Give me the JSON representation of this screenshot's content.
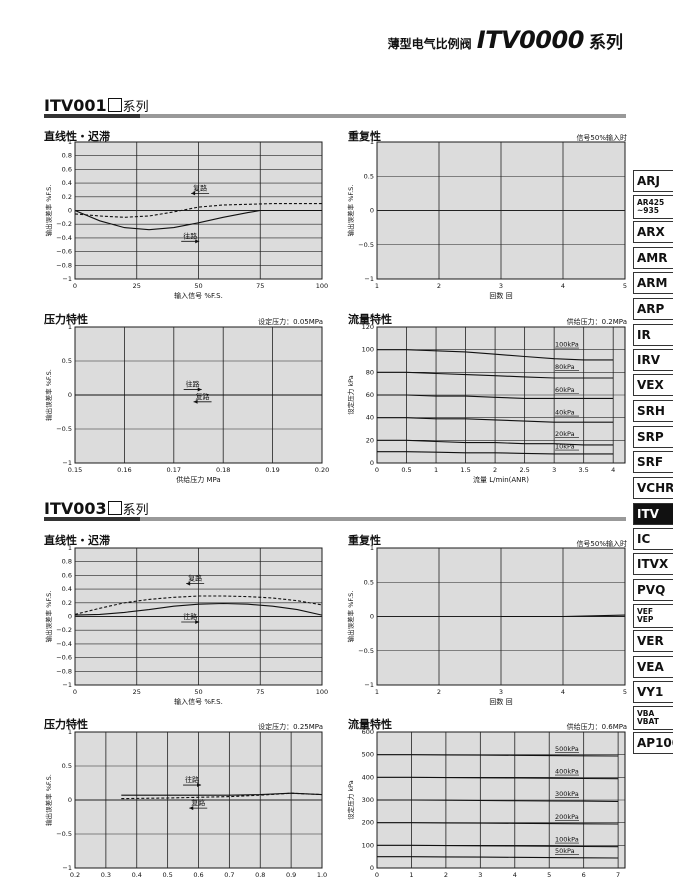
{
  "header": {
    "cn": "薄型电气比例阀",
    "model": "ITV0000",
    "series": "系列"
  },
  "sections": [
    {
      "title": "ITV001",
      "suffix": "系列"
    },
    {
      "title": "ITV003",
      "suffix": "系列"
    }
  ],
  "tabs": [
    "ARJ",
    "AR425\n~935",
    "ARX",
    "AMR",
    "ARM",
    "ARP",
    "IR",
    "IRV",
    "VEX",
    "SRH",
    "SRP",
    "SRF",
    "VCHR",
    "ITV",
    "IC",
    "ITVX",
    "PVQ",
    "VEF\nVEP",
    "VER",
    "VEA",
    "VY1",
    "VBA\nVBAT",
    "AP100"
  ],
  "active_tab": "ITV",
  "charts": [
    {
      "chart_data": {
        "type": "line",
        "title": "直线性・迟滞",
        "condition": "",
        "ylabel": "输出误差率 %F.S.",
        "xlabel": "输入信号 %F.S.",
        "xticks": [
          "0",
          "25",
          "50",
          "75",
          "100"
        ],
        "xlim": [
          0,
          100
        ],
        "yticks": [
          "−1",
          "−0.8",
          "−0.6",
          "−0.4",
          "−0.2",
          "0",
          "0.2",
          "0.4",
          "0.6",
          "0.8",
          "1"
        ],
        "ylim": [
          -1,
          1
        ],
        "series": [
          {
            "name": "复路",
            "style": "dashed",
            "x": [
              0,
              10,
              20,
              30,
              40,
              50,
              60,
              70,
              80,
              90,
              100
            ],
            "y": [
              -0.05,
              -0.08,
              -0.1,
              -0.08,
              -0.02,
              0.05,
              0.08,
              0.09,
              0.1,
              0.1,
              0.1
            ]
          },
          {
            "name": "往路",
            "style": "solid",
            "x": [
              0,
              10,
              20,
              30,
              40,
              50,
              60,
              70,
              75,
              80,
              90,
              100
            ],
            "y": [
              0,
              -0.15,
              -0.25,
              -0.28,
              -0.25,
              -0.18,
              -0.1,
              -0.03,
              0,
              0,
              0,
              0
            ]
          }
        ],
        "annotations": [
          {
            "text": "复路",
            "x": 47,
            "y": 0.25,
            "arrow": "left"
          },
          {
            "text": "往路",
            "x": 43,
            "y": -0.45,
            "arrow": "right"
          }
        ]
      }
    },
    {
      "chart_data": {
        "type": "line",
        "title": "重复性",
        "condition": "信号50%输入时",
        "ylabel": "输出误差率 %F.S.",
        "xlabel": "回数 回",
        "xticks": [
          "1",
          "2",
          "3",
          "4",
          "5"
        ],
        "xlim": [
          1,
          5
        ],
        "yticks": [
          "−1",
          "−0.5",
          "0",
          "0.5",
          "1"
        ],
        "ylim": [
          -1,
          1
        ],
        "series": [],
        "annotations": []
      }
    },
    {
      "chart_data": {
        "type": "line",
        "title": "压力特性",
        "condition": "设定压力：0.05MPa",
        "ylabel": "输出误差率 %F.S.",
        "xlabel": "供给压力 MPa",
        "xticks": [
          "0.15",
          "0.16",
          "0.17",
          "0.18",
          "0.19",
          "0.20"
        ],
        "xlim": [
          0.15,
          0.2
        ],
        "yticks": [
          "−1",
          "−0.5",
          "0",
          "0.5",
          "1"
        ],
        "ylim": [
          -1,
          1
        ],
        "series": [
          {
            "name": "往路",
            "style": "solid",
            "x": [
              0.15,
              0.2
            ],
            "y": [
              0,
              0
            ]
          },
          {
            "name": "复路",
            "style": "dashed",
            "x": [
              0.15,
              0.2
            ],
            "y": [
              0,
              0
            ]
          }
        ],
        "annotations": [
          {
            "text": "往路",
            "x": 0.172,
            "y": 0.08,
            "arrow": "right"
          },
          {
            "text": "复路",
            "x": 0.174,
            "y": -0.1,
            "arrow": "left"
          }
        ]
      }
    },
    {
      "chart_data": {
        "type": "line",
        "title": "流量特性",
        "condition": "供给压力：0.2MPa",
        "ylabel": "设定压力 kPa",
        "xlabel": "流量 L/min(ANR)",
        "xticks": [
          "0",
          "0.5",
          "1",
          "1.5",
          "2",
          "2.5",
          "3",
          "3.5",
          "4"
        ],
        "xlim": [
          0,
          4.2
        ],
        "yticks": [
          "0",
          "20",
          "40",
          "60",
          "80",
          "100",
          "120"
        ],
        "ylim": [
          0,
          120
        ],
        "series": [
          {
            "name": "100kPa",
            "style": "solid",
            "x": [
              0,
              0.5,
              1,
              1.5,
              2,
              2.5,
              3,
              3.5,
              4
            ],
            "y": [
              100,
              100,
              99,
              98,
              96,
              94,
              92,
              91,
              91
            ]
          },
          {
            "name": "80kPa",
            "style": "solid",
            "x": [
              0,
              0.5,
              1,
              1.5,
              2,
              2.5,
              3,
              3.5,
              4
            ],
            "y": [
              80,
              80,
              79,
              78,
              77,
              76,
              75,
              75,
              75
            ]
          },
          {
            "name": "60kPa",
            "style": "solid",
            "x": [
              0,
              0.5,
              1,
              1.5,
              2,
              2.5,
              3,
              3.5,
              4
            ],
            "y": [
              60,
              60,
              59,
              59,
              58,
              57,
              57,
              57,
              57
            ]
          },
          {
            "name": "40kPa",
            "style": "solid",
            "x": [
              0,
              0.5,
              1,
              1.5,
              2,
              2.5,
              3,
              3.5,
              4
            ],
            "y": [
              40,
              40,
              39,
              39,
              38,
              37,
              36,
              36,
              36
            ]
          },
          {
            "name": "20kPa",
            "style": "solid",
            "x": [
              0,
              0.5,
              1,
              1.5,
              2,
              2.5,
              3,
              3.5,
              4
            ],
            "y": [
              20,
              20,
              19,
              18,
              18,
              17,
              17,
              16,
              16
            ]
          },
          {
            "name": "10kPa",
            "style": "solid",
            "x": [
              0,
              0.5,
              1,
              1.5,
              2,
              2.5,
              3,
              3.5,
              4
            ],
            "y": [
              10,
              10,
              9.5,
              9,
              9,
              8.5,
              8,
              8,
              8
            ]
          }
        ],
        "line_labels": [
          {
            "text": "100kPa",
            "y": 101
          },
          {
            "text": "80kPa",
            "y": 81
          },
          {
            "text": "60kPa",
            "y": 61
          },
          {
            "text": "40kPa",
            "y": 41
          },
          {
            "text": "20kPa",
            "y": 22
          },
          {
            "text": "10kPa",
            "y": 11
          }
        ],
        "annotations": []
      }
    },
    {
      "chart_data": {
        "type": "line",
        "title": "直线性・迟滞",
        "condition": "",
        "ylabel": "输出误差率 %F.S.",
        "xlabel": "输入信号 %F.S.",
        "xticks": [
          "0",
          "25",
          "50",
          "75",
          "100"
        ],
        "xlim": [
          0,
          100
        ],
        "yticks": [
          "−1",
          "−0.8",
          "−0.6",
          "−0.4",
          "−0.2",
          "0",
          "0.2",
          "0.4",
          "0.6",
          "0.8",
          "1"
        ],
        "ylim": [
          -1,
          1
        ],
        "series": [
          {
            "name": "复路",
            "style": "dashed",
            "x": [
              0,
              10,
              20,
              30,
              40,
              50,
              60,
              70,
              80,
              90,
              100
            ],
            "y": [
              0.03,
              0.12,
              0.2,
              0.25,
              0.28,
              0.3,
              0.3,
              0.29,
              0.27,
              0.23,
              0.17
            ]
          },
          {
            "name": "往路",
            "style": "solid",
            "x": [
              0,
              10,
              20,
              30,
              40,
              50,
              60,
              70,
              80,
              90,
              100
            ],
            "y": [
              0.02,
              0.03,
              0.06,
              0.1,
              0.15,
              0.18,
              0.19,
              0.18,
              0.15,
              0.1,
              0.02
            ]
          }
        ],
        "annotations": [
          {
            "text": "复路",
            "x": 45,
            "y": 0.48,
            "arrow": "left"
          },
          {
            "text": "往路",
            "x": 43,
            "y": -0.08,
            "arrow": "right"
          }
        ]
      }
    },
    {
      "chart_data": {
        "type": "line",
        "title": "重复性",
        "condition": "信号50%输入时",
        "ylabel": "输出误差率 %F.S.",
        "xlabel": "回数 回",
        "xticks": [
          "1",
          "2",
          "3",
          "4",
          "5"
        ],
        "xlim": [
          1,
          5
        ],
        "yticks": [
          "−1",
          "−0.5",
          "0",
          "0.5",
          "1"
        ],
        "ylim": [
          -1,
          1
        ],
        "series": [
          {
            "name": "",
            "style": "solid",
            "x": [
              3,
              4,
              5
            ],
            "y": [
              0,
              0,
              0.02
            ]
          }
        ],
        "annotations": []
      }
    },
    {
      "chart_data": {
        "type": "line",
        "title": "压力特性",
        "condition": "设定压力：0.25MPa",
        "ylabel": "输出误差率 %F.S.",
        "xlabel": "",
        "xticks": [
          "0.2",
          "0.3",
          "0.4",
          "0.5",
          "0.6",
          "0.7",
          "0.8",
          "0.9",
          "1.0"
        ],
        "xlim": [
          0.2,
          1.0
        ],
        "yticks": [
          "−1",
          "−0.5",
          "0",
          "0.5",
          "1"
        ],
        "ylim": [
          -1,
          1
        ],
        "series": [
          {
            "name": "往路",
            "style": "solid",
            "x": [
              0.35,
              0.5,
              0.6,
              0.7,
              0.8,
              0.9,
              1.0
            ],
            "y": [
              0.07,
              0.07,
              0.07,
              0.07,
              0.08,
              0.1,
              0.08
            ]
          },
          {
            "name": "复路",
            "style": "dashed",
            "x": [
              0.35,
              0.5,
              0.6,
              0.7,
              0.8,
              0.9,
              1.0
            ],
            "y": [
              0.02,
              0.03,
              0.04,
              0.05,
              0.07,
              0.1,
              0.08
            ]
          }
        ],
        "annotations": [
          {
            "text": "往路",
            "x": 0.55,
            "y": 0.22,
            "arrow": "right"
          },
          {
            "text": "复路",
            "x": 0.57,
            "y": -0.12,
            "arrow": "left"
          }
        ]
      }
    },
    {
      "chart_data": {
        "type": "line",
        "title": "流量特性",
        "condition": "供给压力：0.6MPa",
        "ylabel": "设定压力 kPa",
        "xlabel": "",
        "xticks": [
          "0",
          "1",
          "2",
          "3",
          "4",
          "5",
          "6",
          "7"
        ],
        "xlim": [
          0,
          7.2
        ],
        "yticks": [
          "0",
          "100",
          "200",
          "300",
          "400",
          "500",
          "600"
        ],
        "ylim": [
          0,
          600
        ],
        "series": [
          {
            "name": "500kPa",
            "style": "solid",
            "x": [
              0,
              1,
              2,
              3,
              4,
              5,
              6,
              7
            ],
            "y": [
              500,
              500,
              499,
              498,
              497,
              496,
              495,
              494
            ]
          },
          {
            "name": "400kPa",
            "style": "solid",
            "x": [
              0,
              1,
              2,
              3,
              4,
              5,
              6,
              7
            ],
            "y": [
              400,
              400,
              399,
              398,
              397,
              396,
              395,
              394
            ]
          },
          {
            "name": "300kPa",
            "style": "solid",
            "x": [
              0,
              1,
              2,
              3,
              4,
              5,
              6,
              7
            ],
            "y": [
              300,
              300,
              299,
              298,
              297,
              296,
              295,
              294
            ]
          },
          {
            "name": "200kPa",
            "style": "solid",
            "x": [
              0,
              1,
              2,
              3,
              4,
              5,
              6,
              7
            ],
            "y": [
              200,
              200,
              199,
              198,
              197,
              196,
              195,
              194
            ]
          },
          {
            "name": "100kPa",
            "style": "solid",
            "x": [
              0,
              1,
              2,
              3,
              4,
              5,
              6,
              7
            ],
            "y": [
              100,
              100,
              99,
              98,
              97,
              96,
              95,
              94
            ]
          },
          {
            "name": "50kPa",
            "style": "solid",
            "x": [
              0,
              1,
              2,
              3,
              4,
              5,
              6,
              7
            ],
            "y": [
              50,
              50,
              49,
              48,
              47,
              46,
              45,
              44
            ]
          }
        ],
        "line_labels": [
          {
            "text": "500kPa",
            "y": 508
          },
          {
            "text": "400kPa",
            "y": 408
          },
          {
            "text": "300kPa",
            "y": 308
          },
          {
            "text": "200kPa",
            "y": 208
          },
          {
            "text": "100kPa",
            "y": 108
          },
          {
            "text": "50kPa",
            "y": 58
          }
        ],
        "annotations": []
      }
    }
  ]
}
